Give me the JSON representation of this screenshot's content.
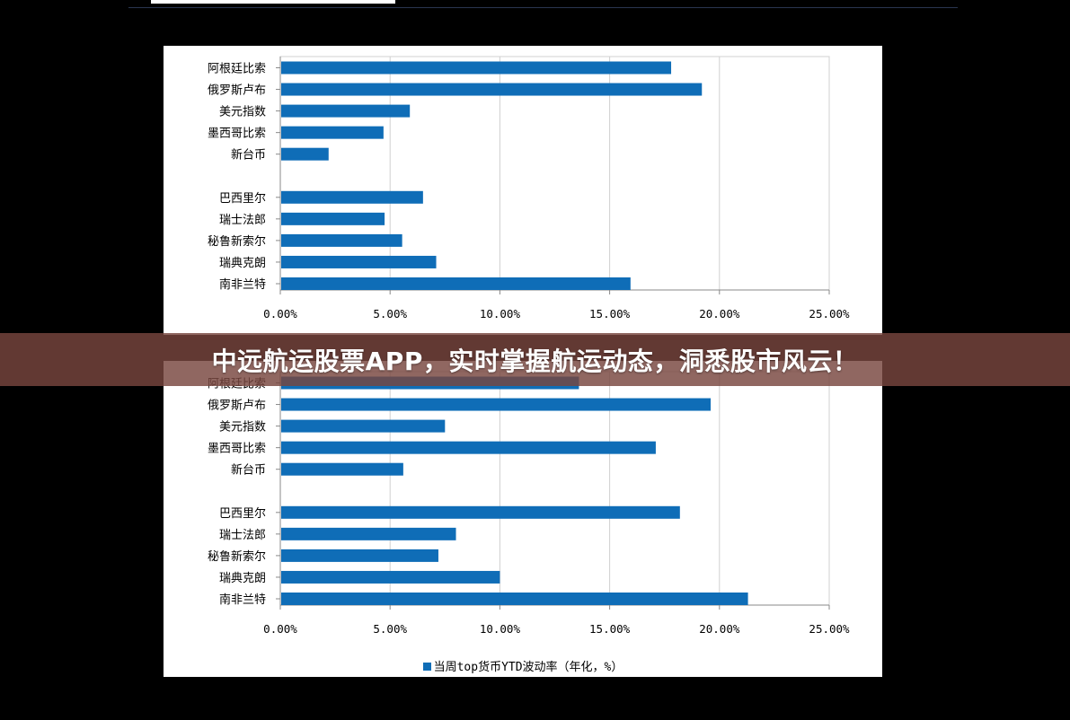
{
  "banner": {
    "text": "中远航运股票APP，实时掌握航运动态，洞悉股市风云！"
  },
  "chart_data": [
    {
      "type": "bar",
      "orientation": "horizontal",
      "categories": [
        "阿根廷比索",
        "俄罗斯卢布",
        "美元指数",
        "墨西哥比索",
        "新台币",
        "",
        "巴西里尔",
        "瑞士法郎",
        "秘鲁新索尔",
        "瑞典克朗",
        "南非兰特"
      ],
      "series": [
        {
          "name": "",
          "values": [
            17.8,
            19.2,
            5.9,
            4.7,
            2.2,
            null,
            6.5,
            4.75,
            5.55,
            7.1,
            15.95
          ]
        }
      ],
      "xlim": [
        0,
        25
      ],
      "xticks": [
        "0.00%",
        "5.00%",
        "10.00%",
        "15.00%",
        "20.00%",
        "25.00%"
      ],
      "grid": true,
      "color": "#0f6db7"
    },
    {
      "type": "bar",
      "orientation": "horizontal",
      "categories": [
        "阿根廷比索",
        "俄罗斯卢布",
        "美元指数",
        "墨西哥比索",
        "新台币",
        "",
        "巴西里尔",
        "瑞士法郎",
        "秘鲁新索尔",
        "瑞典克朗",
        "南非兰特"
      ],
      "series": [
        {
          "name": "当周top货币YTD波动率（年化，%）",
          "values": [
            13.6,
            19.6,
            7.5,
            17.1,
            5.6,
            null,
            18.2,
            8.0,
            7.2,
            10.0,
            21.3
          ]
        }
      ],
      "xlim": [
        0,
        25
      ],
      "xticks": [
        "0.00%",
        "5.00%",
        "10.00%",
        "15.00%",
        "20.00%",
        "25.00%"
      ],
      "grid": true,
      "legend": "bottom",
      "color": "#0f6db7"
    }
  ]
}
